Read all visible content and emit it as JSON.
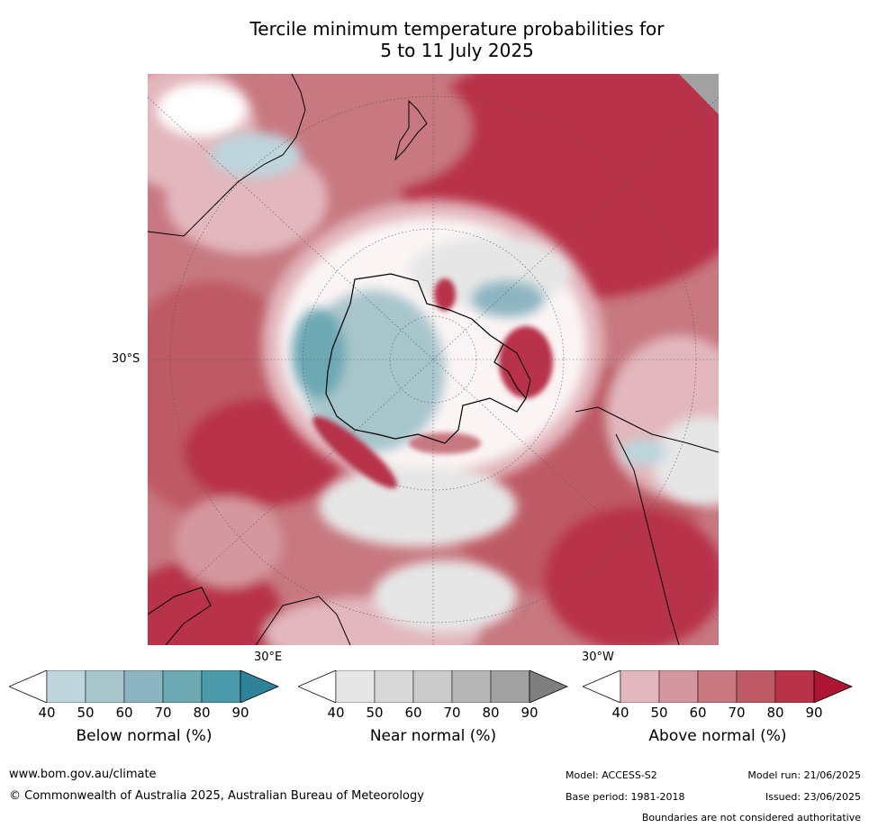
{
  "title": {
    "line1": "Tercile minimum temperature probabilities for",
    "line2": "5 to 11 July 2025"
  },
  "map": {
    "projection_labels": {
      "lat_30S": "30°S",
      "lon_30E": "30°E",
      "lon_30W": "30°W"
    },
    "colors": {
      "above": [
        "#e2b7bd",
        "#d5979f",
        "#c77880",
        "#be5a65",
        "#b83348",
        "#ac1632"
      ],
      "near": [
        "#e6e6e6",
        "#d8d8d8",
        "#cbcbcb",
        "#b6b6b6",
        "#a1a1a1",
        "#7f7f7f"
      ],
      "below": [
        "#bdd5db",
        "#a7c6cc",
        "#8db5c1",
        "#6ca9b3",
        "#4b9aaa",
        "#2e8399"
      ],
      "land_outline": "#000000"
    }
  },
  "colorbars": [
    {
      "title": "Below normal (%)",
      "ticks": [
        "40",
        "50",
        "60",
        "70",
        "80",
        "90"
      ],
      "colors": [
        "#ffffff",
        "#bdd5db",
        "#a7c6cc",
        "#8db5c1",
        "#6ca9b3",
        "#4b9aaa",
        "#2e8399"
      ]
    },
    {
      "title": "Near normal (%)",
      "ticks": [
        "40",
        "50",
        "60",
        "70",
        "80",
        "90"
      ],
      "colors": [
        "#ffffff",
        "#e6e6e6",
        "#d8d8d8",
        "#cbcbcb",
        "#b6b6b6",
        "#a1a1a1",
        "#7f7f7f"
      ]
    },
    {
      "title": "Above normal (%)",
      "ticks": [
        "40",
        "50",
        "60",
        "70",
        "80",
        "90"
      ],
      "colors": [
        "#ffffff",
        "#e2b7bd",
        "#d5979f",
        "#c77880",
        "#be5a65",
        "#b83348",
        "#ac1632"
      ]
    }
  ],
  "footer": {
    "website": "www.bom.gov.au/climate",
    "copyright": "© Commonwealth of Australia 2025, Australian Bureau of Meteorology",
    "model": "Model: ACCESS-S2",
    "model_run": "Model run: 21/06/2025",
    "base_period": "Base period: 1981-2018",
    "issued": "Issued: 23/06/2025",
    "disclaimer": "Boundaries are not considered authoritative"
  }
}
